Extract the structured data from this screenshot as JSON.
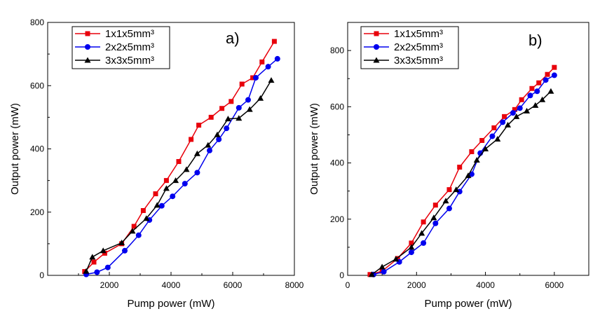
{
  "chart_data": [
    {
      "type": "line",
      "panel_label": "a)",
      "xlabel": "Pump power (mW)",
      "ylabel": "Output power (mW)",
      "xlim": [
        0,
        8000
      ],
      "ylim": [
        0,
        800
      ],
      "xticks": [
        2000,
        4000,
        6000,
        8000
      ],
      "yticks": [
        0,
        200,
        400,
        600,
        800
      ],
      "legend_position": "top-left",
      "grid": false,
      "series": [
        {
          "name": "1x1x5mm³",
          "color": "#e8000b",
          "marker": "square",
          "x": [
            1200,
            1500,
            1850,
            2400,
            2800,
            3100,
            3500,
            3850,
            4250,
            4650,
            4900,
            5300,
            5650,
            5950,
            6300,
            6650,
            6950,
            7350
          ],
          "y": [
            12,
            42,
            70,
            100,
            155,
            205,
            258,
            300,
            360,
            430,
            475,
            500,
            528,
            550,
            605,
            625,
            675,
            740
          ]
        },
        {
          "name": "2x2x5mm³",
          "color": "#0000ee",
          "marker": "circle",
          "x": [
            1250,
            1600,
            1950,
            2500,
            2950,
            3300,
            3700,
            4050,
            4450,
            4850,
            5250,
            5550,
            5800,
            6200,
            6500,
            6750,
            7150,
            7450
          ],
          "y": [
            3,
            10,
            25,
            78,
            127,
            175,
            220,
            250,
            290,
            325,
            395,
            430,
            465,
            530,
            555,
            625,
            660,
            685
          ]
        },
        {
          "name": "3x3x5mm³",
          "color": "#000000",
          "marker": "triangle",
          "x": [
            1250,
            1450,
            1800,
            2400,
            2750,
            3200,
            3550,
            3850,
            4150,
            4500,
            4850,
            5200,
            5500,
            5850,
            6200,
            6550,
            6900,
            7250
          ],
          "y": [
            13,
            58,
            78,
            103,
            140,
            180,
            222,
            275,
            300,
            335,
            385,
            412,
            445,
            495,
            497,
            525,
            560,
            617
          ]
        }
      ]
    },
    {
      "type": "line",
      "panel_label": "b)",
      "xlabel": "Pump power (mW)",
      "ylabel": "Output power (mW)",
      "xlim": [
        0,
        7000
      ],
      "ylim": [
        0,
        900
      ],
      "xticks": [
        0,
        2000,
        4000,
        6000
      ],
      "yticks": [
        0,
        200,
        400,
        600,
        800
      ],
      "legend_position": "top-left",
      "grid": false,
      "series": [
        {
          "name": "1x1x5mm³",
          "color": "#e8000b",
          "marker": "square",
          "x": [
            650,
            1000,
            1450,
            1850,
            2200,
            2550,
            2950,
            3250,
            3600,
            3900,
            4250,
            4550,
            4850,
            5050,
            5350,
            5550,
            5800,
            6000
          ],
          "y": [
            3,
            15,
            60,
            115,
            190,
            250,
            305,
            385,
            440,
            480,
            525,
            565,
            590,
            625,
            665,
            685,
            715,
            740
          ]
        },
        {
          "name": "2x2x5mm³",
          "color": "#0000ee",
          "marker": "circle",
          "x": [
            750,
            1050,
            1500,
            1850,
            2200,
            2550,
            2950,
            3250,
            3600,
            3850,
            4200,
            4500,
            4800,
            5000,
            5300,
            5500,
            5750,
            6000
          ],
          "y": [
            3,
            13,
            48,
            82,
            115,
            185,
            238,
            298,
            360,
            435,
            495,
            545,
            578,
            595,
            640,
            655,
            695,
            712
          ]
        },
        {
          "name": "3x3x5mm³",
          "color": "#000000",
          "marker": "triangle",
          "x": [
            700,
            1000,
            1400,
            1850,
            2150,
            2500,
            2850,
            3150,
            3500,
            3750,
            4000,
            4350,
            4650,
            4900,
            5200,
            5450,
            5650,
            5900
          ],
          "y": [
            3,
            30,
            58,
            100,
            150,
            205,
            265,
            305,
            355,
            410,
            450,
            485,
            535,
            565,
            585,
            605,
            625,
            655
          ]
        }
      ]
    }
  ]
}
